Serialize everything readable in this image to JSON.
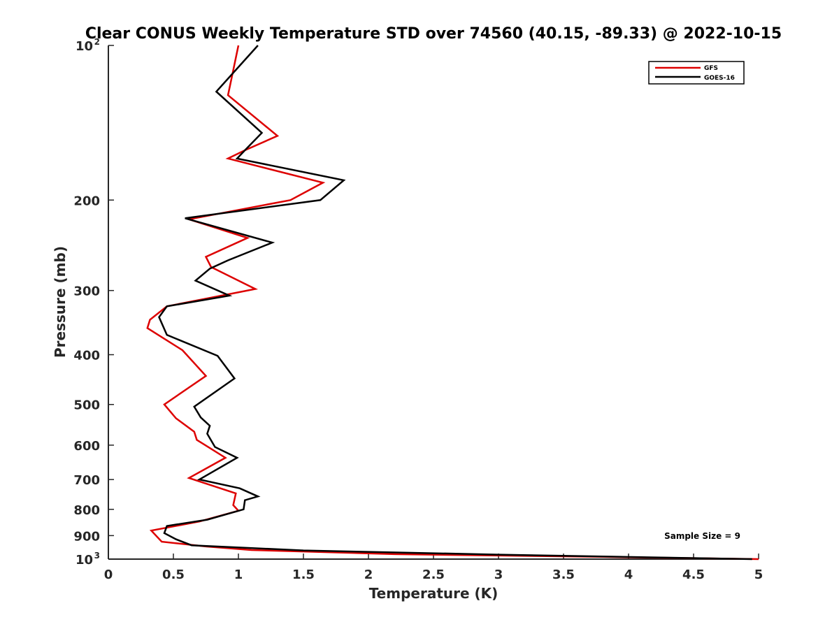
{
  "chart_data": {
    "type": "line",
    "title": "Clear CONUS Weekly Temperature STD over 74560 (40.15, -89.33) @ 2022-10-15",
    "xlabel": "Temperature (K)",
    "ylabel": "Pressure (mb)",
    "xlim": [
      0,
      5
    ],
    "ylim": [
      100,
      1000
    ],
    "y_scale": "log",
    "y_reversed": true,
    "grid": false,
    "legend_position": "top-right",
    "annotation": "Sample Size = 9",
    "xticks": [
      {
        "value": 0,
        "label": "0"
      },
      {
        "value": 0.5,
        "label": "0.5"
      },
      {
        "value": 1,
        "label": "1"
      },
      {
        "value": 1.5,
        "label": "1.5"
      },
      {
        "value": 2,
        "label": "2"
      },
      {
        "value": 2.5,
        "label": "2.5"
      },
      {
        "value": 3,
        "label": "3"
      },
      {
        "value": 3.5,
        "label": "3.5"
      },
      {
        "value": 4,
        "label": "4"
      },
      {
        "value": 4.5,
        "label": "4.5"
      },
      {
        "value": 5,
        "label": "5"
      }
    ],
    "yticks": [
      {
        "value": 100,
        "label": "10",
        "exp": "2"
      },
      {
        "value": 200,
        "label": "200"
      },
      {
        "value": 300,
        "label": "300"
      },
      {
        "value": 400,
        "label": "400"
      },
      {
        "value": 500,
        "label": "500"
      },
      {
        "value": 600,
        "label": "600"
      },
      {
        "value": 700,
        "label": "700"
      },
      {
        "value": 800,
        "label": "800"
      },
      {
        "value": 900,
        "label": "900"
      },
      {
        "value": 1000,
        "label": "10",
        "exp": "3"
      }
    ],
    "series": [
      {
        "name": "GFS",
        "color": "#dd0000",
        "points": [
          [
            1.0,
            100
          ],
          [
            0.95,
            115
          ],
          [
            0.92,
            125
          ],
          [
            1.3,
            150
          ],
          [
            1.05,
            160
          ],
          [
            0.92,
            166
          ],
          [
            1.65,
            185
          ],
          [
            1.4,
            200
          ],
          [
            0.62,
            218
          ],
          [
            1.07,
            237
          ],
          [
            0.75,
            258
          ],
          [
            0.79,
            270
          ],
          [
            1.13,
            298
          ],
          [
            0.45,
            322
          ],
          [
            0.32,
            342
          ],
          [
            0.3,
            355
          ],
          [
            0.57,
            392
          ],
          [
            0.75,
            440
          ],
          [
            0.43,
            500
          ],
          [
            0.52,
            532
          ],
          [
            0.66,
            565
          ],
          [
            0.68,
            586
          ],
          [
            0.9,
            635
          ],
          [
            0.62,
            695
          ],
          [
            0.98,
            745
          ],
          [
            0.96,
            785
          ],
          [
            1.0,
            805
          ],
          [
            0.7,
            845
          ],
          [
            0.33,
            880
          ],
          [
            0.41,
            925
          ],
          [
            0.75,
            945
          ],
          [
            1.1,
            960
          ],
          [
            2.2,
            978
          ],
          [
            3.8,
            990
          ],
          [
            5.0,
            1000
          ]
        ]
      },
      {
        "name": "GOES-16",
        "color": "#000000",
        "points": [
          [
            1.15,
            100
          ],
          [
            0.83,
            123
          ],
          [
            1.18,
            148
          ],
          [
            1.05,
            160
          ],
          [
            0.99,
            166
          ],
          [
            1.81,
            183
          ],
          [
            1.63,
            200
          ],
          [
            0.59,
            217
          ],
          [
            1.26,
            242
          ],
          [
            0.92,
            262
          ],
          [
            0.78,
            272
          ],
          [
            0.67,
            287
          ],
          [
            0.93,
            307
          ],
          [
            0.45,
            322
          ],
          [
            0.39,
            338
          ],
          [
            0.45,
            366
          ],
          [
            0.84,
            402
          ],
          [
            0.97,
            445
          ],
          [
            0.66,
            505
          ],
          [
            0.71,
            530
          ],
          [
            0.78,
            550
          ],
          [
            0.76,
            570
          ],
          [
            0.82,
            605
          ],
          [
            0.99,
            635
          ],
          [
            0.7,
            700
          ],
          [
            1.01,
            728
          ],
          [
            1.15,
            755
          ],
          [
            1.05,
            768
          ],
          [
            1.04,
            800
          ],
          [
            0.76,
            838
          ],
          [
            0.45,
            862
          ],
          [
            0.43,
            890
          ],
          [
            0.52,
            915
          ],
          [
            0.64,
            940
          ],
          [
            1.5,
            962
          ],
          [
            3.0,
            980
          ],
          [
            4.95,
            1000
          ]
        ]
      }
    ]
  }
}
